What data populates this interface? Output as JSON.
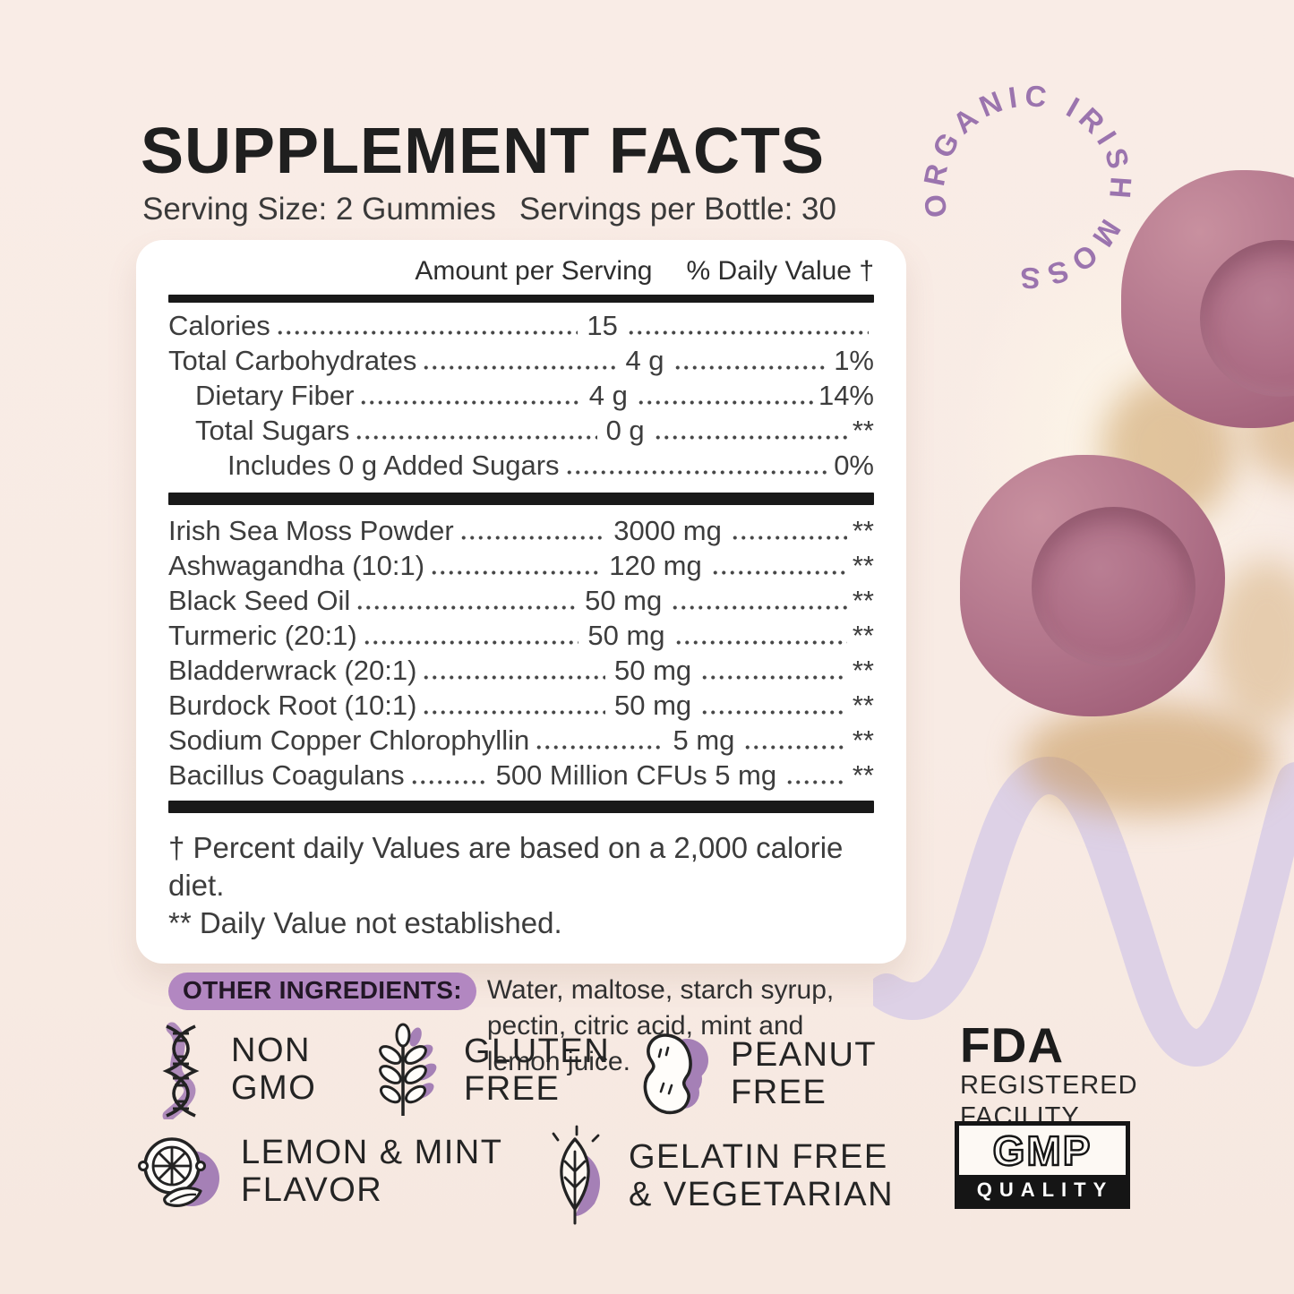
{
  "header": {
    "title": "SUPPLEMENT FACTS",
    "serving_size": "Serving Size: 2 Gummies",
    "servings_per_bottle": "Servings per Bottle: 30"
  },
  "circle_badge": {
    "text": "ORGANIC IRISH MOSS"
  },
  "panel": {
    "columns": {
      "amount": "Amount per Serving",
      "daily_value": "% Daily Value †"
    },
    "nutrition_rows": [
      {
        "label": "Calories",
        "amount": "15",
        "dv": "",
        "indent": 0
      },
      {
        "label": "Total Carbohydrates",
        "amount": "4 g",
        "dv": "1%",
        "indent": 0
      },
      {
        "label": "Dietary Fiber",
        "amount": "4 g",
        "dv": "14%",
        "indent": 1
      },
      {
        "label": "Total Sugars",
        "amount": "0 g",
        "dv": "**",
        "indent": 1
      },
      {
        "label": "Includes 0 g Added Sugars",
        "amount": "",
        "dv": "0%",
        "indent": 2
      }
    ],
    "ingredient_rows": [
      {
        "label": "Irish Sea Moss Powder",
        "amount": "3000 mg",
        "dv": "**"
      },
      {
        "label": "Ashwagandha (10:1)",
        "amount": "120 mg",
        "dv": "**"
      },
      {
        "label": "Black Seed Oil",
        "amount": "50 mg",
        "dv": "**"
      },
      {
        "label": "Turmeric (20:1)",
        "amount": "50 mg",
        "dv": "**"
      },
      {
        "label": "Bladderwrack (20:1)",
        "amount": "50 mg",
        "dv": "**"
      },
      {
        "label": "Burdock Root (10:1)",
        "amount": "50 mg",
        "dv": "**"
      },
      {
        "label": "Sodium Copper Chlorophyllin",
        "amount": "5 mg",
        "dv": "**"
      },
      {
        "label": "Bacillus Coagulans",
        "amount": "500 Million CFUs 5 mg",
        "dv": "**"
      }
    ],
    "footnotes": [
      "† Percent daily Values are based on a 2,000 calorie diet.",
      "** Daily Value not established."
    ],
    "other_ingredients": {
      "label": "OTHER INGREDIENTS:",
      "text": "Water, maltose, starch syrup, pectin, citric acid, mint and lemon juice."
    }
  },
  "badges": {
    "non_gmo": {
      "icon": "dna-icon",
      "lines": [
        "NON",
        "GMO"
      ]
    },
    "gluten_free": {
      "icon": "wheat-icon",
      "lines": [
        "GLUTEN",
        "FREE"
      ]
    },
    "peanut_free": {
      "icon": "peanut-icon",
      "lines": [
        "PEANUT",
        "FREE"
      ]
    },
    "fda": {
      "title": "FDA",
      "lines": [
        "REGISTERED",
        "FACILITY"
      ]
    },
    "lemon_mint": {
      "icon": "lemon-icon",
      "lines": [
        "LEMON & MINT",
        "FLAVOR"
      ]
    },
    "gelatin_free": {
      "icon": "leaf-icon",
      "lines": [
        "GELATIN FREE",
        "& VEGETARIAN"
      ]
    },
    "gmp": {
      "title": "GMP",
      "subtitle": "QUALITY"
    }
  },
  "colors": {
    "background": "#f8ebe4",
    "accent_purple": "#a580b6",
    "circle_text_purple": "#9b74ae",
    "highlight_pill": "#b287c1",
    "wave_lavender": "#ddd1e6",
    "gummy_mauve": "#ab6c84",
    "bar_black": "#191919"
  }
}
